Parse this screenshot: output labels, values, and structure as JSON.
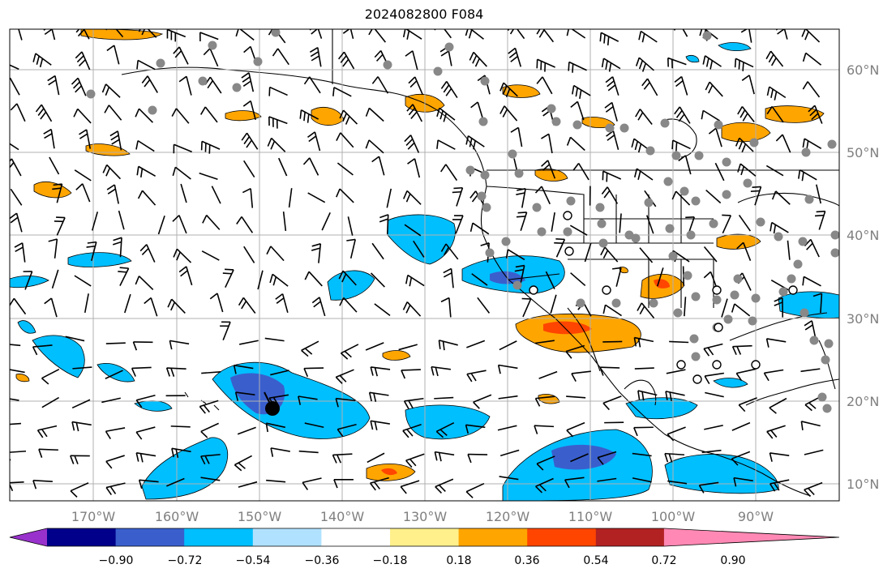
{
  "title": "2024082800 F084",
  "map": {
    "lon_ticks": [
      "170°W",
      "160°W",
      "150°W",
      "140°W",
      "130°W",
      "120°W",
      "110°W",
      "100°W",
      "90°W"
    ],
    "lat_ticks": [
      "60°N",
      "50°N",
      "40°N",
      "30°N",
      "20°N",
      "10°N"
    ],
    "grid": true,
    "colors": {
      "grid": "#b0b0b0",
      "coast": "#000000",
      "station": "#888888"
    }
  },
  "colorbar": {
    "ticks": [
      "−0.90",
      "−0.72",
      "−0.54",
      "−0.36",
      "−0.18",
      "0.18",
      "0.36",
      "0.54",
      "0.72",
      "0.90"
    ],
    "colors": [
      "#9932cc",
      "#00008b",
      "#3a5fcd",
      "#00bfff",
      "#b0e2ff",
      "#ffffff",
      "#fff08c",
      "#ffa500",
      "#ff4500",
      "#b22222",
      "#ff89b4"
    ]
  }
}
